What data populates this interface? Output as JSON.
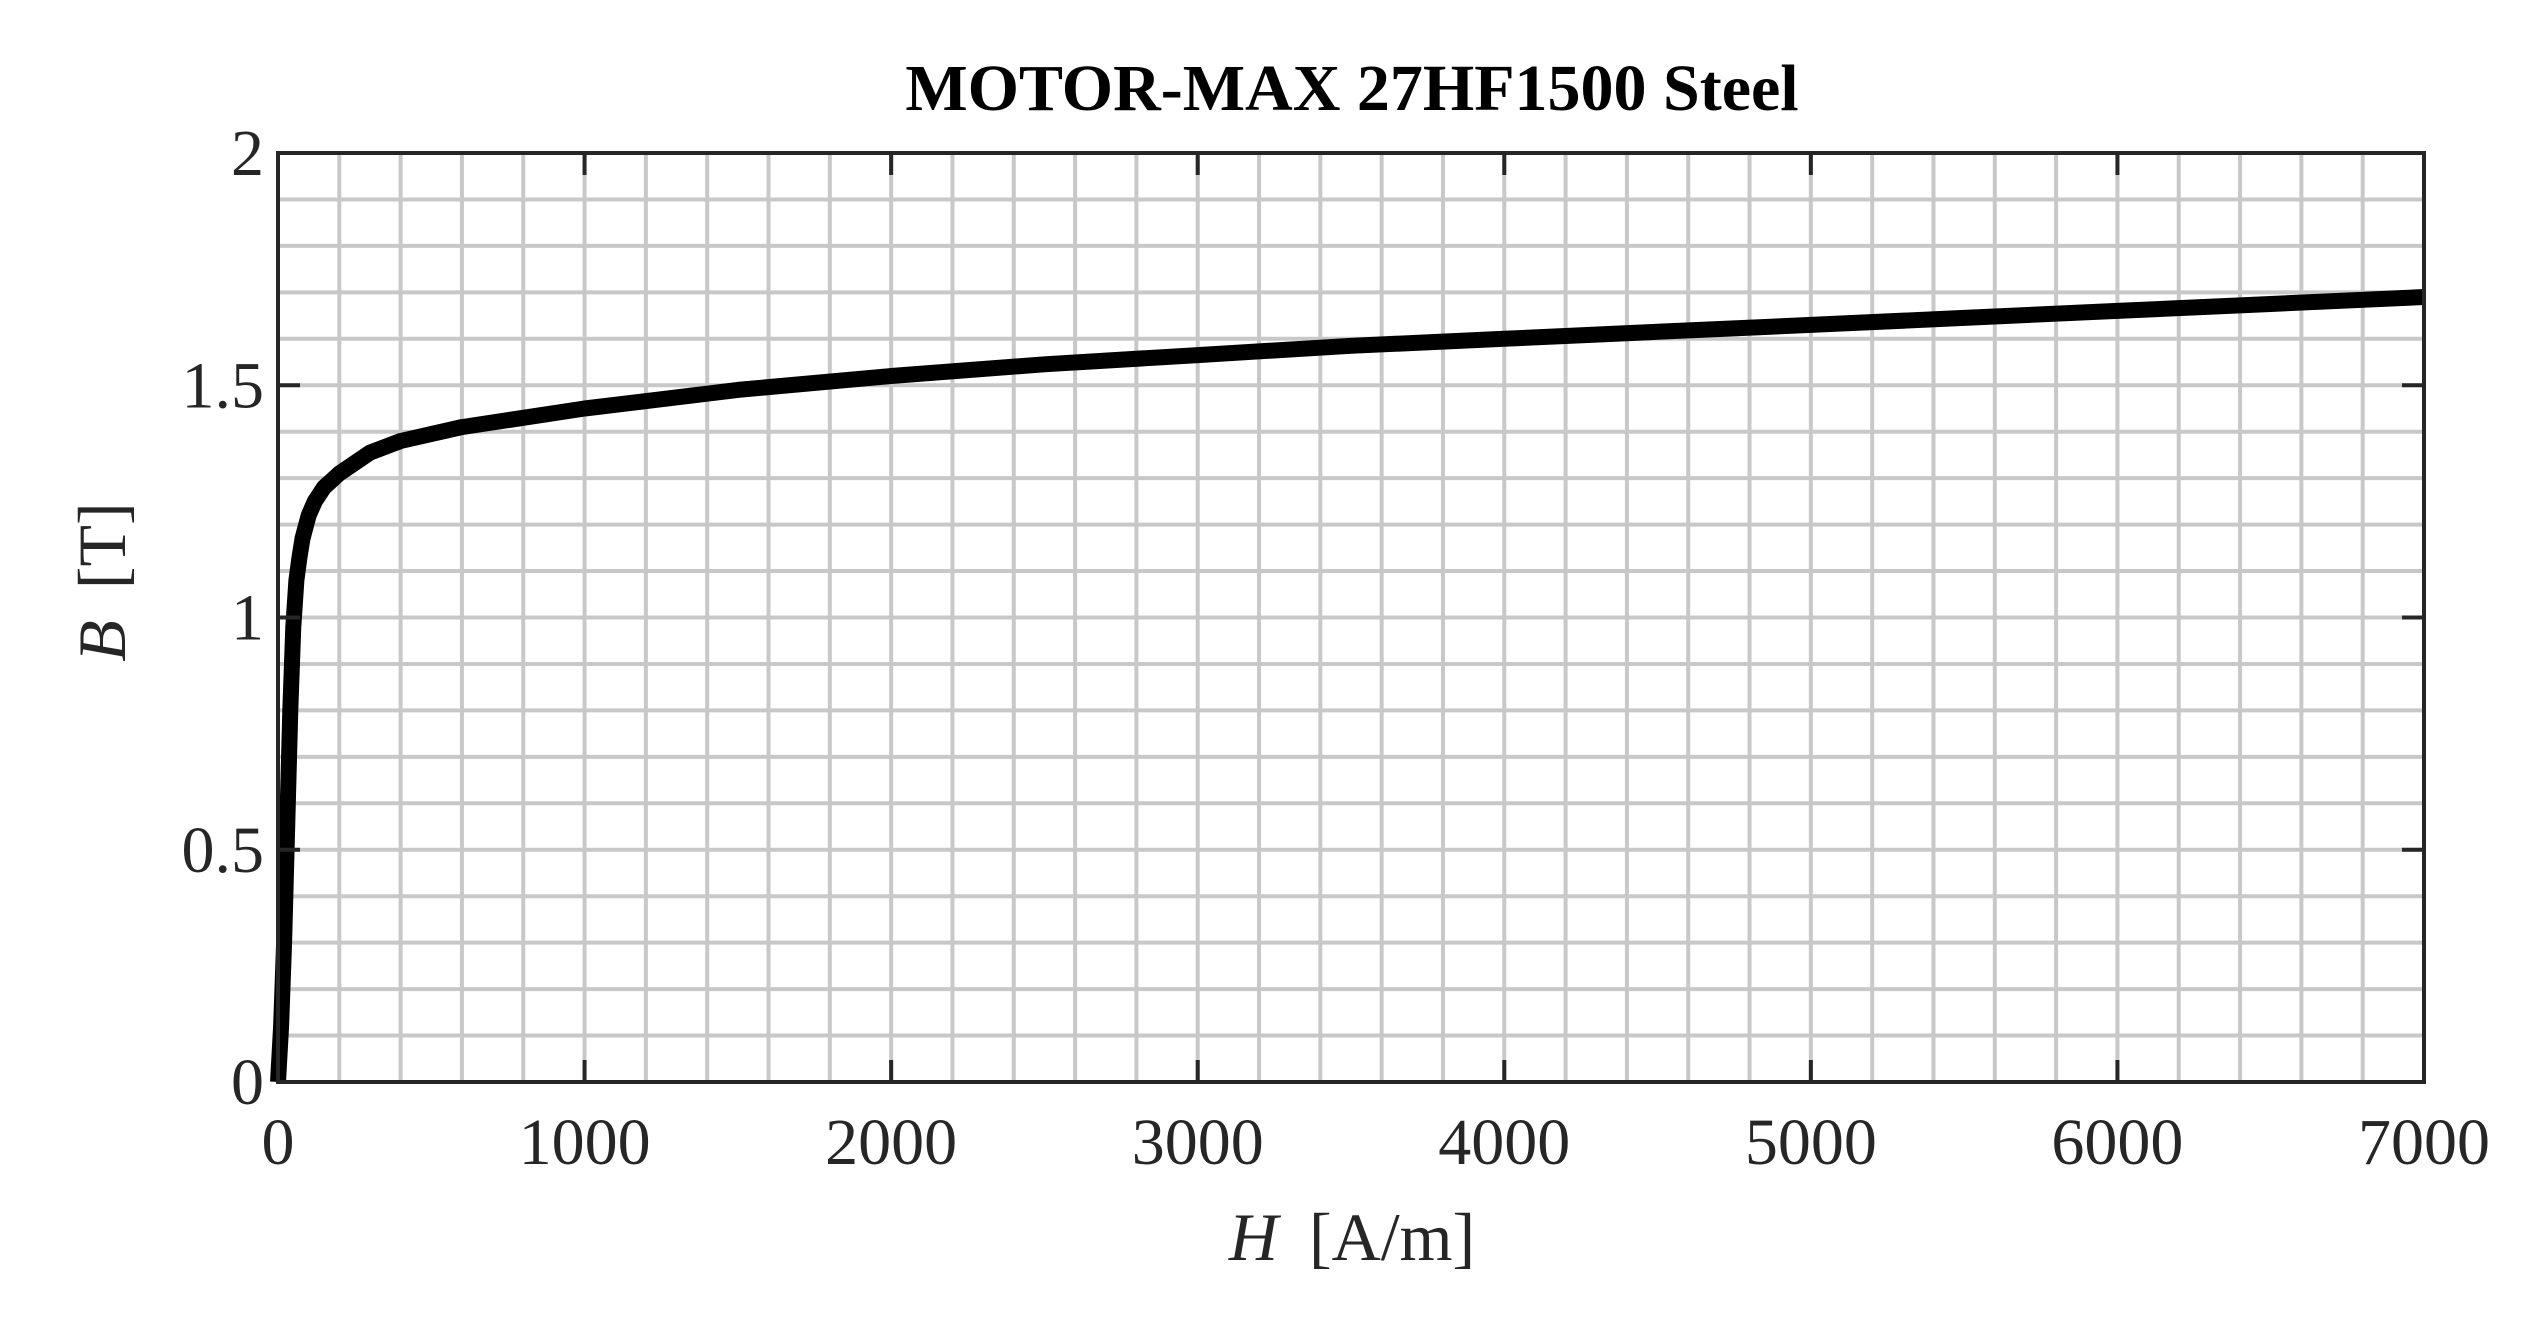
{
  "chart_data": {
    "type": "line",
    "title": "MOTOR-MAX 27HF1500 Steel",
    "xlabel": {
      "var": "H",
      "unit": "[A/m]"
    },
    "ylabel": {
      "var": "B",
      "unit": "[T]"
    },
    "xlim": [
      0,
      7000
    ],
    "ylim": [
      0,
      2
    ],
    "x_ticks": [
      0,
      1000,
      2000,
      3000,
      4000,
      5000,
      6000,
      7000
    ],
    "x_tick_labels": [
      "0",
      "1000",
      "2000",
      "3000",
      "4000",
      "5000",
      "6000",
      "7000"
    ],
    "y_ticks": [
      0,
      0.5,
      1,
      1.5,
      2
    ],
    "y_tick_labels": [
      "0",
      "0.5",
      "1",
      "1.5",
      "2"
    ],
    "x_minor_step": 200,
    "y_minor_step": 0.1,
    "grid": true,
    "minor_grid": true,
    "legend": "none",
    "series": [
      {
        "color": "#000000",
        "x": [
          0,
          10,
          20,
          30,
          40,
          50,
          60,
          70,
          80,
          100,
          120,
          150,
          200,
          300,
          400,
          600,
          800,
          1000,
          1500,
          2000,
          2500,
          3000,
          3500,
          4000,
          4500,
          5000,
          5500,
          6000,
          6500,
          7000
        ],
        "y": [
          0,
          0.12,
          0.3,
          0.55,
          0.8,
          0.98,
          1.08,
          1.13,
          1.17,
          1.22,
          1.25,
          1.28,
          1.31,
          1.355,
          1.38,
          1.41,
          1.43,
          1.45,
          1.49,
          1.52,
          1.545,
          1.565,
          1.585,
          1.6,
          1.615,
          1.63,
          1.645,
          1.66,
          1.675,
          1.69
        ]
      }
    ]
  }
}
